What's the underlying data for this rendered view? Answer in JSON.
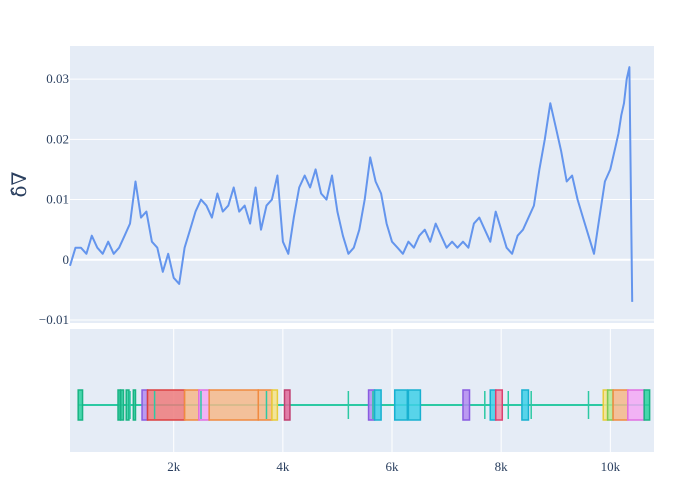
{
  "chart_data": {
    "type": "line",
    "title": "",
    "colors": {
      "background": "#e5ecf6",
      "line": "#6495ed",
      "zero_line": "#ffffff",
      "grid": "#ffffff",
      "text": "#2a3f5f"
    },
    "main_plot": {
      "ylabel": "δ̂∇",
      "xlim": [
        100,
        10800
      ],
      "ylim": [
        -0.0105,
        0.0355
      ],
      "yticks": [
        -0.01,
        0,
        0.01,
        0.02,
        0.03
      ],
      "ytick_labels": [
        "−0.01",
        "0",
        "0.01",
        "0.02",
        "0.03"
      ],
      "series": [
        {
          "x": [
            100,
            200,
            300,
            400,
            500,
            600,
            700,
            800,
            900,
            1000,
            1100,
            1200,
            1300,
            1400,
            1500,
            1600,
            1700,
            1800,
            1900,
            2000,
            2100,
            2200,
            2300,
            2400,
            2500,
            2600,
            2700,
            2800,
            2900,
            3000,
            3100,
            3200,
            3300,
            3400,
            3500,
            3600,
            3700,
            3800,
            3900,
            4000,
            4100,
            4200,
            4300,
            4400,
            4500,
            4600,
            4700,
            4800,
            4900,
            5000,
            5100,
            5200,
            5300,
            5400,
            5500,
            5600,
            5700,
            5800,
            5900,
            6000,
            6100,
            6200,
            6300,
            6400,
            6500,
            6600,
            6700,
            6800,
            6900,
            7000,
            7100,
            7200,
            7300,
            7400,
            7500,
            7600,
            7700,
            7800,
            7900,
            8000,
            8100,
            8200,
            8300,
            8400,
            8500,
            8600,
            8700,
            8800,
            8900,
            9000,
            9100,
            9200,
            9300,
            9400,
            9500,
            9600,
            9700,
            9800,
            9900,
            10000,
            10100,
            10150,
            10200,
            10250,
            10300,
            10350,
            10400
          ],
          "y": [
            -0.001,
            0.002,
            0.002,
            0.001,
            0.004,
            0.002,
            0.001,
            0.003,
            0.001,
            0.002,
            0.004,
            0.006,
            0.013,
            0.007,
            0.008,
            0.003,
            0.002,
            -0.002,
            0.001,
            -0.003,
            -0.004,
            0.002,
            0.005,
            0.008,
            0.01,
            0.009,
            0.007,
            0.011,
            0.008,
            0.009,
            0.012,
            0.008,
            0.009,
            0.006,
            0.012,
            0.005,
            0.009,
            0.01,
            0.014,
            0.003,
            0.001,
            0.007,
            0.012,
            0.014,
            0.012,
            0.015,
            0.011,
            0.01,
            0.014,
            0.008,
            0.004,
            0.001,
            0.002,
            0.005,
            0.01,
            0.017,
            0.013,
            0.011,
            0.006,
            0.003,
            0.002,
            0.001,
            0.003,
            0.002,
            0.004,
            0.005,
            0.003,
            0.006,
            0.004,
            0.002,
            0.003,
            0.002,
            0.003,
            0.002,
            0.006,
            0.007,
            0.005,
            0.003,
            0.008,
            0.005,
            0.002,
            0.001,
            0.004,
            0.005,
            0.007,
            0.009,
            0.015,
            0.02,
            0.026,
            0.022,
            0.018,
            0.013,
            0.014,
            0.01,
            0.007,
            0.004,
            0.001,
            0.007,
            0.013,
            0.015,
            0.019,
            0.021,
            0.024,
            0.026,
            0.03,
            0.032,
            -0.007
          ]
        }
      ]
    },
    "sub_plot": {
      "xlim": [
        100,
        10800
      ],
      "xticks": [
        2000,
        4000,
        6000,
        8000,
        10000
      ],
      "xtick_labels": [
        "2k",
        "4k",
        "6k",
        "8k",
        "10k"
      ],
      "baseline_color": "#2cc9a3",
      "boxes": [
        {
          "x0": 250,
          "x1": 330,
          "fill": "#2cd2a0",
          "stroke": "#19b383"
        },
        {
          "x0": 980,
          "x1": 1020,
          "fill": "#2cd2a0",
          "stroke": "#19b383"
        },
        {
          "x0": 1030,
          "x1": 1080,
          "fill": "#2cd2a0",
          "stroke": "#19b383"
        },
        {
          "x0": 1130,
          "x1": 1180,
          "fill": "#2cd2a0",
          "stroke": "#19b383"
        },
        {
          "x0": 1260,
          "x1": 1300,
          "fill": "#2cd2a0",
          "stroke": "#19b383"
        },
        {
          "x0": 1420,
          "x1": 1520,
          "fill": "#b48cf0",
          "stroke": "#8a5ce0"
        },
        {
          "x0": 1520,
          "x1": 2200,
          "fill": "#ee7b7b",
          "stroke": "#dc4040"
        },
        {
          "x0": 2200,
          "x1": 2460,
          "fill": "#f6b98a",
          "stroke": "#f08a40"
        },
        {
          "x0": 2460,
          "x1": 2650,
          "fill": "#f4a8f4",
          "stroke": "#e070e0"
        },
        {
          "x0": 2650,
          "x1": 3550,
          "fill": "#f6b98a",
          "stroke": "#f08a40"
        },
        {
          "x0": 3550,
          "x1": 3800,
          "fill": "#f6b98a",
          "stroke": "#f08a40"
        },
        {
          "x0": 3800,
          "x1": 3900,
          "fill": "#f5e38a",
          "stroke": "#e8cc3a"
        },
        {
          "x0": 4030,
          "x1": 4130,
          "fill": "#e06a9a",
          "stroke": "#c04070"
        },
        {
          "x0": 5570,
          "x1": 5680,
          "fill": "#b48cf0",
          "stroke": "#8a5ce0"
        },
        {
          "x0": 5680,
          "x1": 5800,
          "fill": "#3fd0e8",
          "stroke": "#18b0d0"
        },
        {
          "x0": 6050,
          "x1": 6280,
          "fill": "#3fd0e8",
          "stroke": "#18b0d0"
        },
        {
          "x0": 6300,
          "x1": 6520,
          "fill": "#3fd0e8",
          "stroke": "#18b0d0"
        },
        {
          "x0": 7300,
          "x1": 7420,
          "fill": "#b48cf0",
          "stroke": "#8a5ce0"
        },
        {
          "x0": 7800,
          "x1": 7900,
          "fill": "#3fd0e8",
          "stroke": "#18b0d0"
        },
        {
          "x0": 7900,
          "x1": 8020,
          "fill": "#ee90a8",
          "stroke": "#dc4070"
        },
        {
          "x0": 8380,
          "x1": 8500,
          "fill": "#3fd0e8",
          "stroke": "#18b0d0"
        },
        {
          "x0": 9870,
          "x1": 9950,
          "fill": "#f5e38a",
          "stroke": "#e8cc3a"
        },
        {
          "x0": 9950,
          "x1": 10050,
          "fill": "#b4e890",
          "stroke": "#80c850"
        },
        {
          "x0": 10050,
          "x1": 10320,
          "fill": "#f6b98a",
          "stroke": "#f08a40"
        },
        {
          "x0": 10320,
          "x1": 10620,
          "fill": "#f4a8f4",
          "stroke": "#e070e0"
        },
        {
          "x0": 10620,
          "x1": 10720,
          "fill": "#2cd2a0",
          "stroke": "#19b383"
        }
      ],
      "markers": [
        1200,
        1650,
        2500,
        3700,
        5200,
        5650,
        7700,
        8130,
        8550,
        9600
      ],
      "marker_color": "#2cc9a3"
    }
  }
}
